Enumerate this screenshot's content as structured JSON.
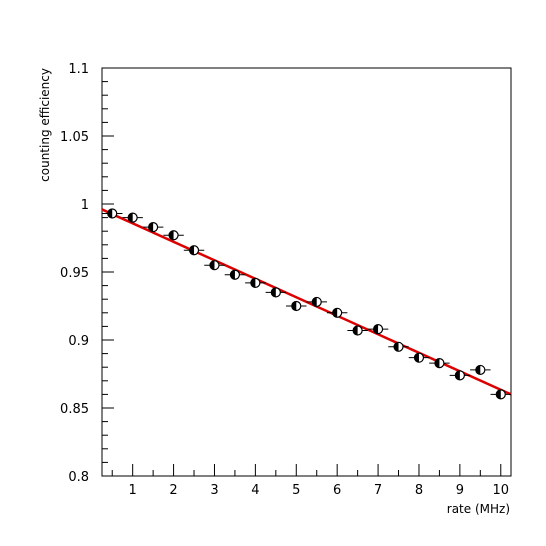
{
  "chart_data": {
    "type": "scatter",
    "xlabel": "rate (MHz)",
    "ylabel": "counting efficiency",
    "xlim": [
      0.25,
      10.25
    ],
    "ylim": [
      0.8,
      1.1
    ],
    "x_ticks": [
      {
        "value": 1,
        "label": "1"
      },
      {
        "value": 2,
        "label": "2"
      },
      {
        "value": 3,
        "label": "3"
      },
      {
        "value": 4,
        "label": "4"
      },
      {
        "value": 5,
        "label": "5"
      },
      {
        "value": 6,
        "label": "6"
      },
      {
        "value": 7,
        "label": "7"
      },
      {
        "value": 8,
        "label": "8"
      },
      {
        "value": 9,
        "label": "9"
      },
      {
        "value": 10,
        "label": "10"
      }
    ],
    "y_ticks": [
      {
        "value": 0.8,
        "label": "0.8"
      },
      {
        "value": 0.85,
        "label": "0.85"
      },
      {
        "value": 0.9,
        "label": "0.9"
      },
      {
        "value": 0.95,
        "label": "0.95"
      },
      {
        "value": 1.0,
        "label": "1"
      },
      {
        "value": 1.05,
        "label": "1.05"
      },
      {
        "value": 1.1,
        "label": "1.1"
      }
    ],
    "grid": false,
    "series": [
      {
        "kind": "points",
        "marker": "half-filled circle",
        "x_error": 0.25,
        "x": [
          0.5,
          1.0,
          1.5,
          2.0,
          2.5,
          3.0,
          3.5,
          4.0,
          4.5,
          5.0,
          5.5,
          6.0,
          6.5,
          7.0,
          7.5,
          8.0,
          8.5,
          9.0,
          9.5,
          10.0
        ],
        "y": [
          0.993,
          0.99,
          0.983,
          0.977,
          0.966,
          0.955,
          0.948,
          0.942,
          0.935,
          0.925,
          0.928,
          0.92,
          0.907,
          0.908,
          0.895,
          0.887,
          0.883,
          0.874,
          0.878,
          0.86
        ]
      },
      {
        "kind": "fit-line",
        "color": "#dd0000",
        "x": [
          0.25,
          10.25
        ],
        "y": [
          0.996,
          0.86
        ]
      }
    ]
  },
  "colors": {
    "axis": "#000000",
    "fit_line": "#dd0000",
    "marker": "#000000"
  }
}
